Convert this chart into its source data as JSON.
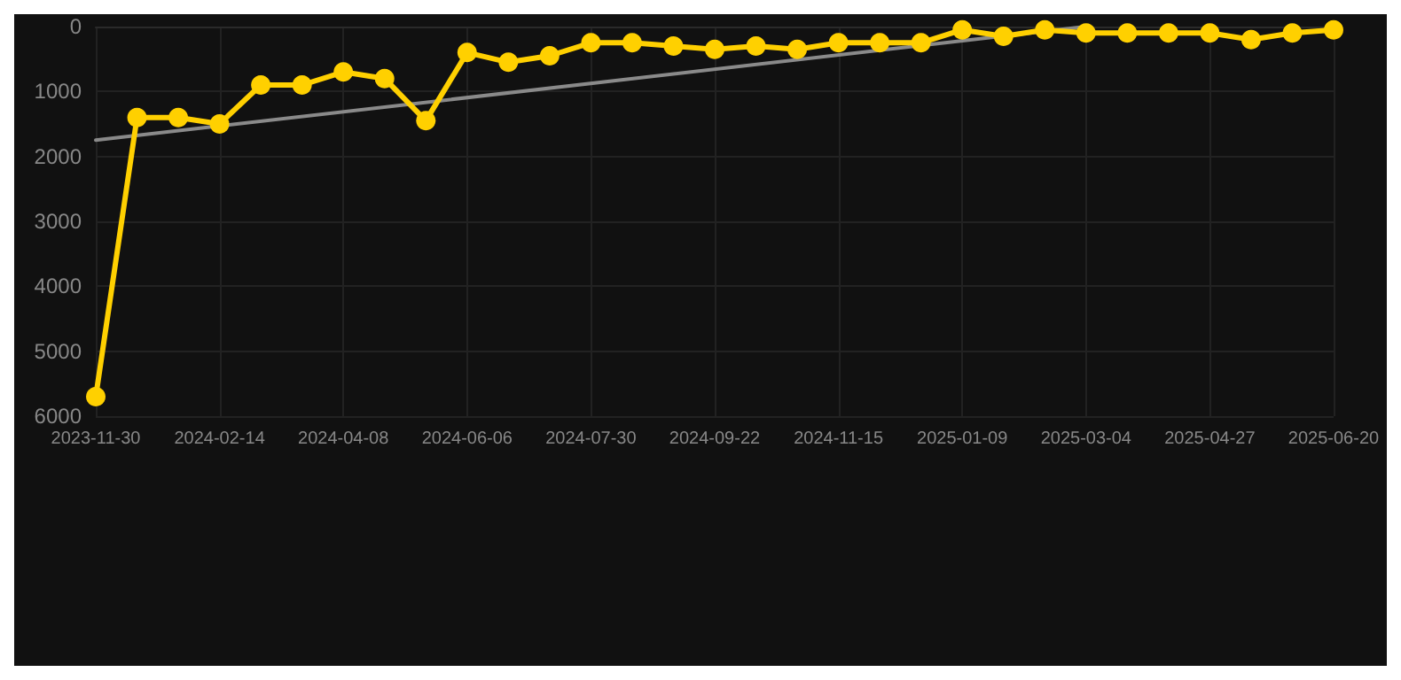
{
  "chart_data": {
    "type": "line",
    "categories": [
      "2023-11-30",
      null,
      null,
      "2024-02-14",
      null,
      null,
      "2024-04-08",
      null,
      null,
      "2024-06-06",
      null,
      null,
      "2024-07-30",
      null,
      null,
      "2024-09-22",
      null,
      null,
      "2024-11-15",
      null,
      null,
      "2025-01-09",
      null,
      null,
      "2025-03-04",
      null,
      null,
      "2025-04-27",
      null,
      null,
      "2025-06-20"
    ],
    "series": [
      {
        "color": "#ffd000",
        "values": [
          5700,
          1400,
          1400,
          1500,
          900,
          900,
          700,
          800,
          1450,
          400,
          550,
          450,
          250,
          250,
          300,
          350,
          300,
          350,
          250,
          250,
          250,
          50,
          150,
          50,
          100,
          100,
          100,
          100,
          200,
          100,
          50
        ]
      },
      {
        "type": "line",
        "color": "#8a8a8a",
        "values": [
          1750,
          null,
          null,
          null,
          null,
          null,
          null,
          null,
          null,
          null,
          null,
          null,
          null,
          null,
          null,
          null,
          null,
          null,
          null,
          null,
          null,
          null,
          null,
          null,
          0,
          null,
          null,
          null,
          null,
          null,
          null
        ],
        "marker": "none"
      }
    ],
    "ylim": [
      6000,
      0
    ],
    "yticks": [
      0,
      1000,
      2000,
      3000,
      4000,
      5000,
      6000
    ],
    "grid": true,
    "marker": "circle"
  }
}
